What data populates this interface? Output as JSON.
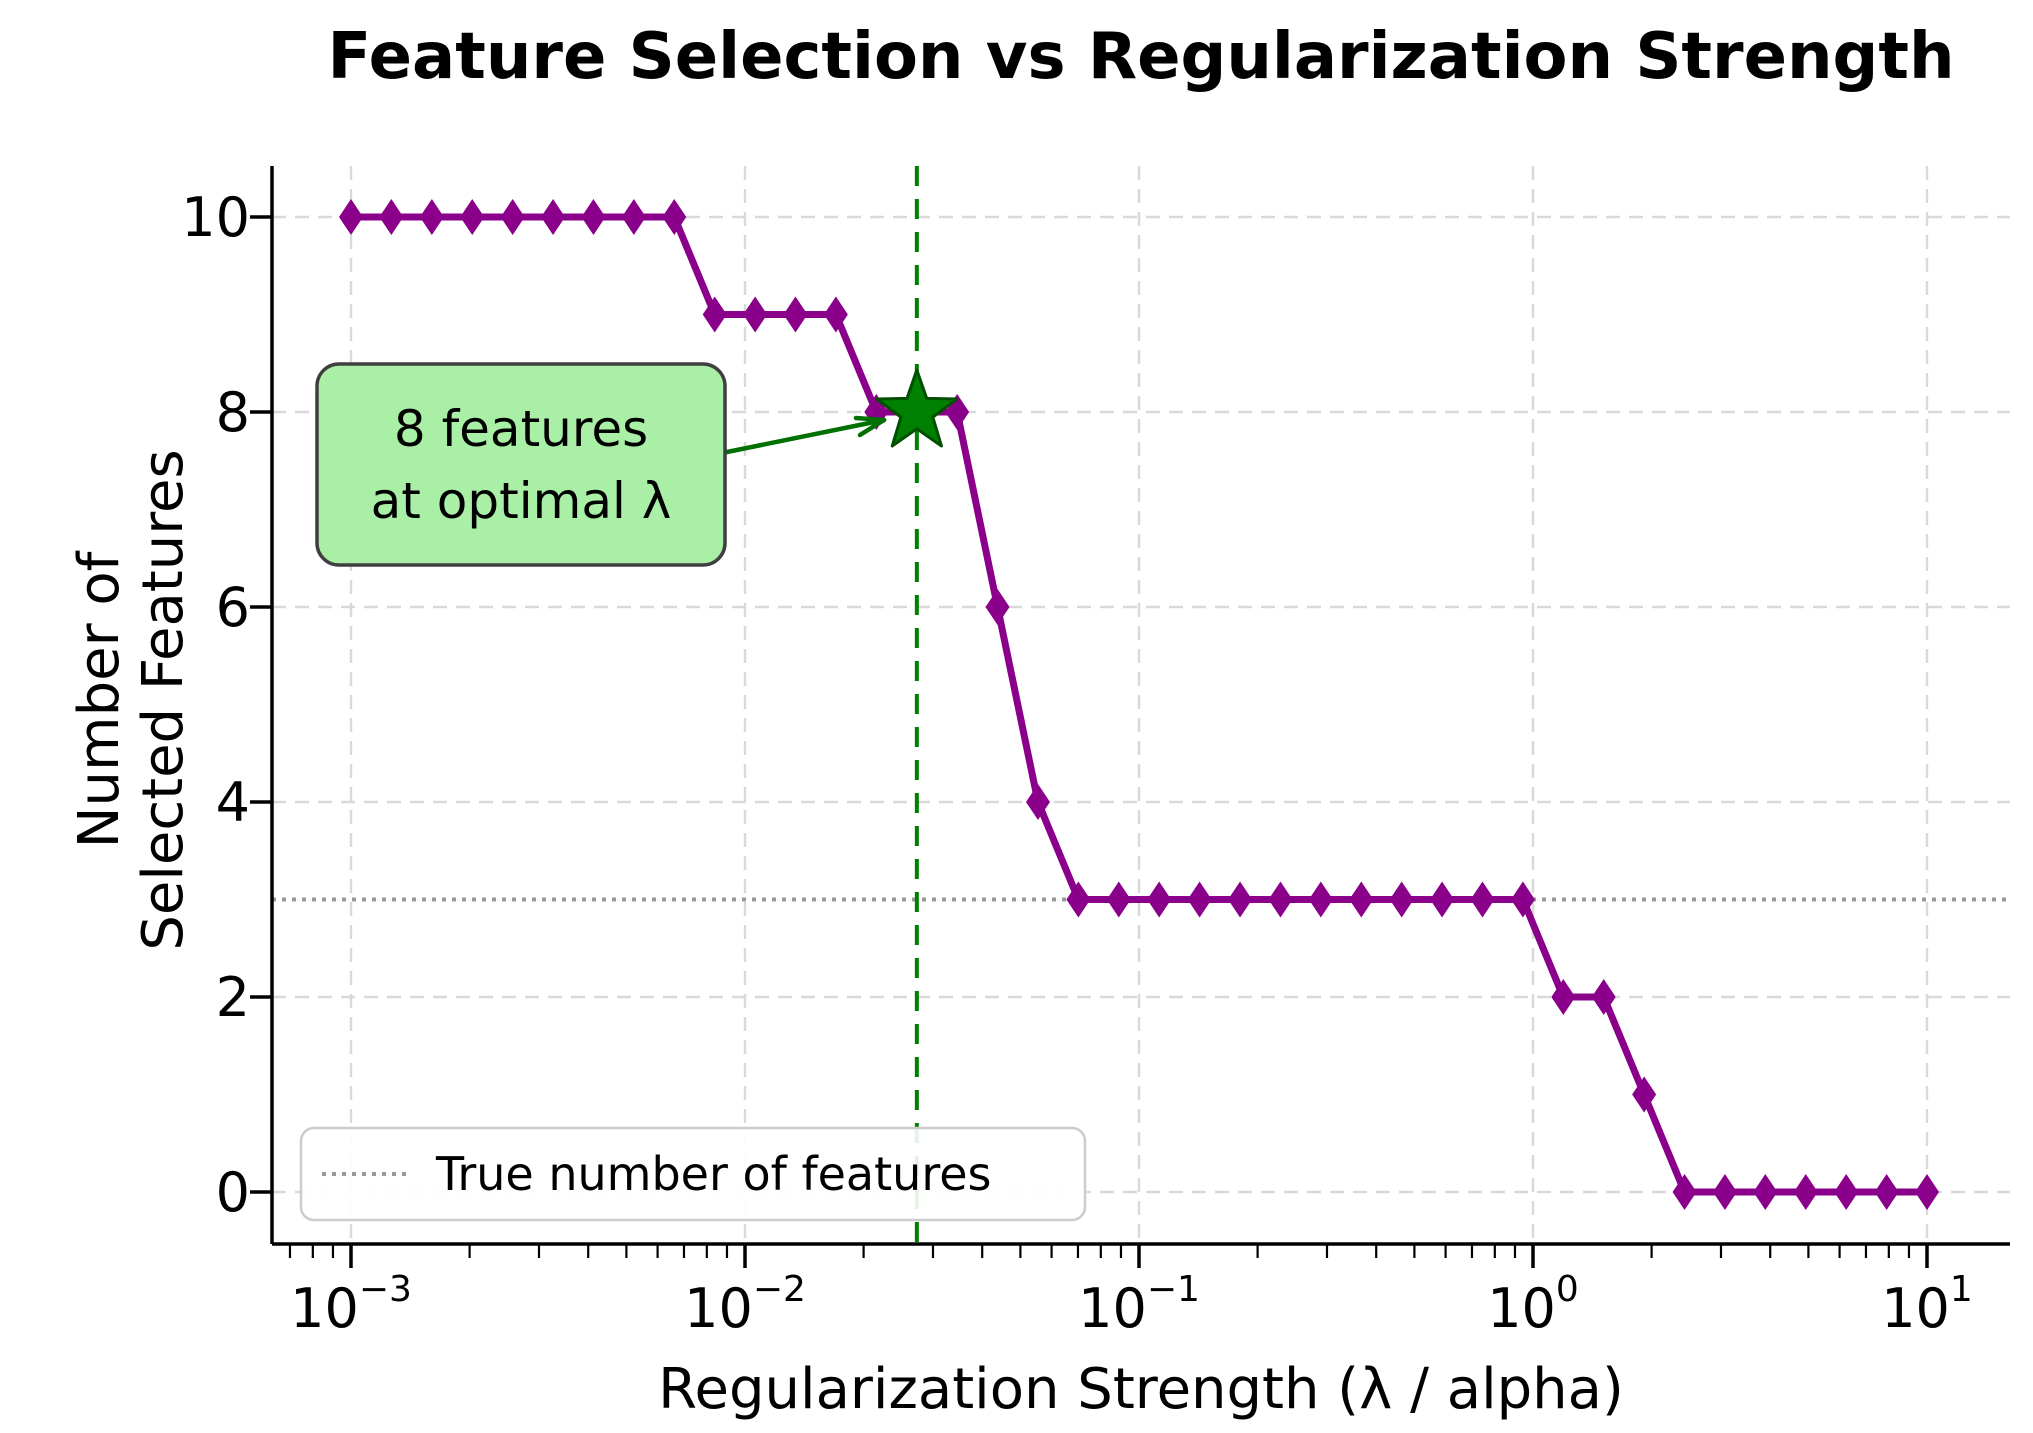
{
  "figure": {
    "title": "Feature Selection vs Regularization Strength",
    "xlabel": "Regularization Strength (λ / alpha)",
    "ylabel_line1": "Number of",
    "ylabel_line2": "Selected Features",
    "background": "#ffffff"
  },
  "colors": {
    "line": "#8B008B",
    "marker": "#8B008B",
    "star_fill": "#008000",
    "star_edge": "#005000",
    "vline": "#008000",
    "connector": "#007000",
    "annotation_fill": "#a9f0a6",
    "annotation_border": "#3f3f3f",
    "grid": "#d9d9d9",
    "true_line": "#999999",
    "spine": "#000000",
    "tick": "#000000",
    "legend_border": "#cccccc",
    "legend_fill": "#ffffff",
    "text": "#000000"
  },
  "legend": {
    "label": "True number of features",
    "position": "lower left"
  },
  "annotation": {
    "line1": "8 features",
    "line2": "at optimal λ",
    "points_to_x": 0.0273,
    "points_to_y": 8
  },
  "chart_data": {
    "type": "line",
    "x_scale": "log",
    "marker": "thin-diamond",
    "title": "Feature Selection vs Regularization Strength",
    "xlabel": "Regularization Strength (λ / alpha)",
    "ylabel": "Number of Selected Features",
    "xlim": [
      0.00063,
      16.2
    ],
    "ylim": [
      -0.525,
      10.525
    ],
    "grid": true,
    "x": [
      0.001,
      0.001266,
      0.001604,
      0.002031,
      0.002572,
      0.003257,
      0.004124,
      0.005223,
      0.006615,
      0.008377,
      0.01061,
      0.01343,
      0.01701,
      0.02154,
      0.02728,
      0.03455,
      0.04375,
      0.05541,
      0.07017,
      0.08886,
      0.1125,
      0.1425,
      0.1805,
      0.2286,
      0.2894,
      0.3666,
      0.4642,
      0.5878,
      0.7443,
      0.9427,
      1.1938,
      1.5118,
      1.9145,
      2.4245,
      3.0702,
      3.8881,
      4.9239,
      6.2361,
      7.8976,
      10.0
    ],
    "y": [
      10,
      10,
      10,
      10,
      10,
      10,
      10,
      10,
      10,
      9,
      9,
      9,
      9,
      8,
      8,
      8,
      6,
      4,
      3,
      3,
      3,
      3,
      3,
      3,
      3,
      3,
      3,
      3,
      3,
      3,
      2,
      2,
      1,
      0,
      0,
      0,
      0,
      0,
      0,
      0
    ],
    "true_number_of_features": 3,
    "optimal": {
      "lambda": 0.0273,
      "selected_features": 8
    },
    "xticks": [
      {
        "value": 0.001,
        "base": "10",
        "exp": "−3"
      },
      {
        "value": 0.01,
        "base": "10",
        "exp": "−2"
      },
      {
        "value": 0.1,
        "base": "10",
        "exp": "−1"
      },
      {
        "value": 1,
        "base": "10",
        "exp": "0"
      },
      {
        "value": 10,
        "base": "10",
        "exp": "1"
      }
    ],
    "yticks": [
      {
        "value": 0,
        "label": "0"
      },
      {
        "value": 2,
        "label": "2"
      },
      {
        "value": 4,
        "label": "4"
      },
      {
        "value": 6,
        "label": "6"
      },
      {
        "value": 8,
        "label": "8"
      },
      {
        "value": 10,
        "label": "10"
      }
    ]
  }
}
